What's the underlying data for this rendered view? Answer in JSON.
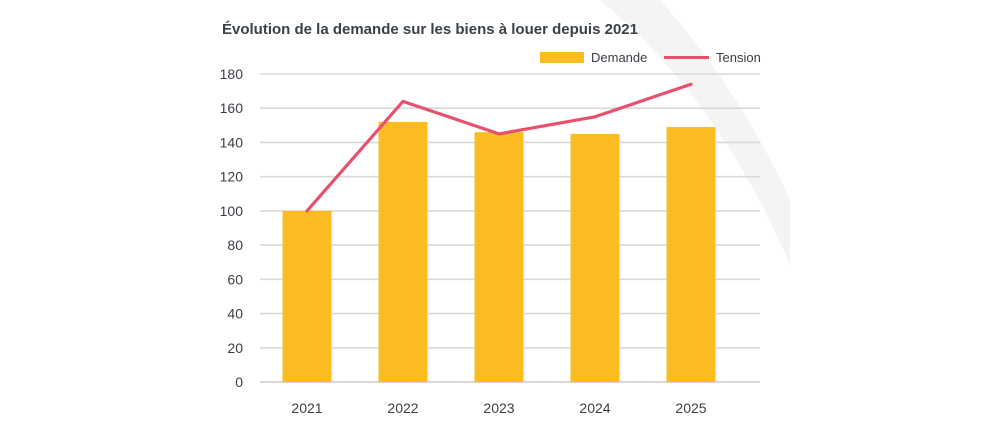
{
  "chart_data": {
    "type": "bar",
    "title": "Évolution de la demande sur les biens à louer depuis 2021",
    "categories": [
      "2021",
      "2022",
      "2023",
      "2024",
      "2025"
    ],
    "series": [
      {
        "name": "Demande",
        "type": "bar",
        "values": [
          100,
          152,
          146,
          145,
          149
        ]
      },
      {
        "name": "Tension",
        "type": "line",
        "values": [
          100,
          164,
          145,
          155,
          174
        ]
      }
    ],
    "ylim": [
      0,
      180
    ],
    "yticks": [
      0,
      20,
      40,
      60,
      80,
      100,
      120,
      140,
      160,
      180
    ],
    "grid": true,
    "legend_position": "top-right",
    "colors": {
      "bar": "#fbbc22",
      "line": "#e8506e",
      "grid": "#d9d9d9",
      "decor": "#f4f4f4"
    }
  }
}
